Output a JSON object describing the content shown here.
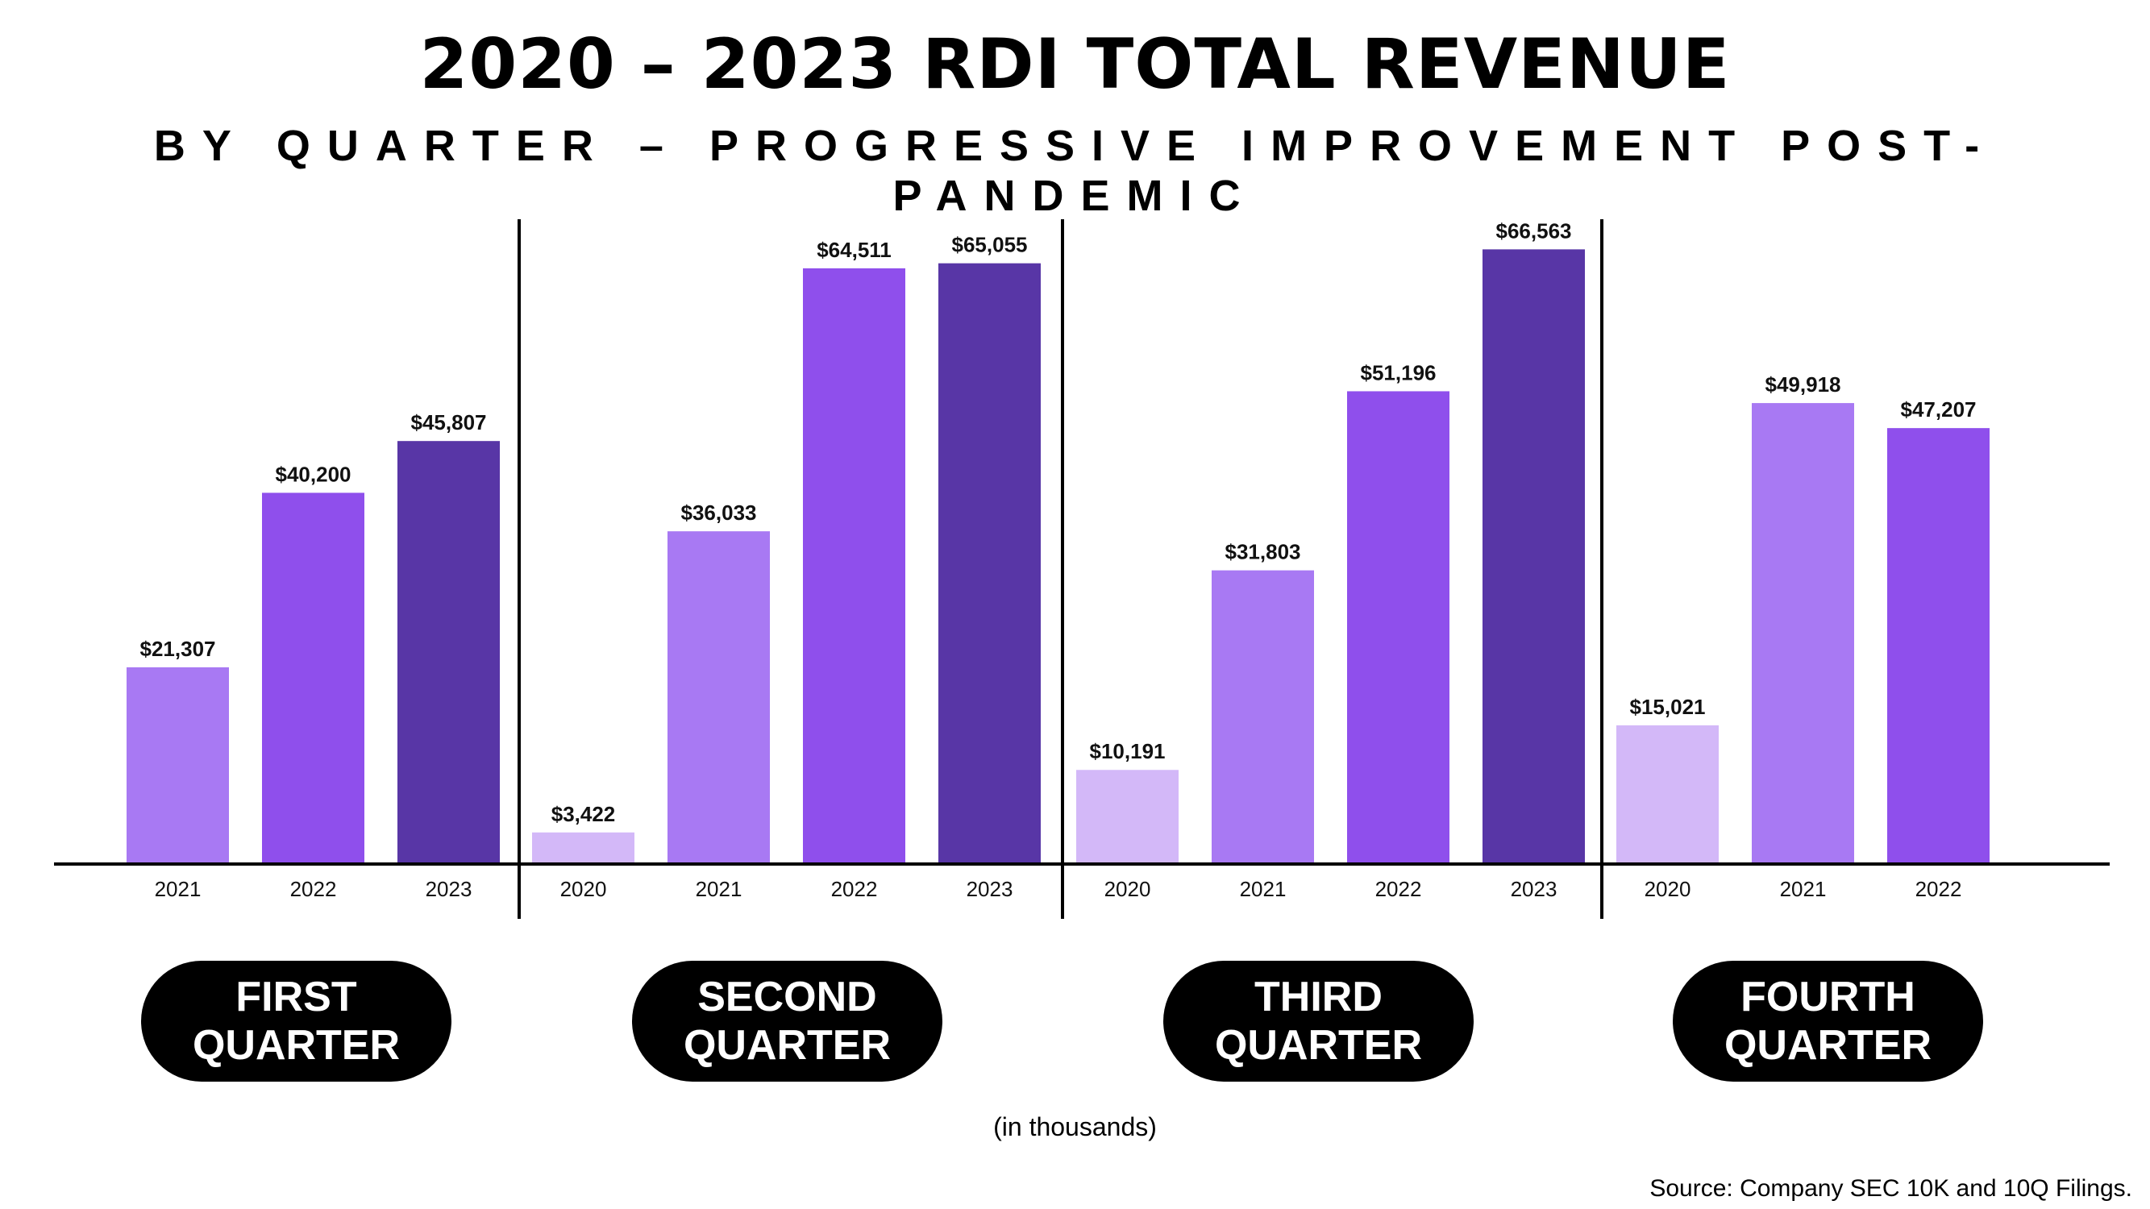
{
  "header": {
    "title": "2020 – 2023 RDI TOTAL REVENUE",
    "subtitle": "BY QUARTER – PROGRESSIVE IMPROVEMENT POST-PANDEMIC"
  },
  "chart_data": {
    "type": "bar",
    "title": "2020 – 2023 RDI TOTAL REVENUE",
    "subtitle": "BY QUARTER – PROGRESSIVE IMPROVEMENT POST-PANDEMIC",
    "unit_note": "(in thousands)",
    "ylim": [
      0,
      70000
    ],
    "grid": false,
    "groups": [
      {
        "name": "FIRST QUARTER",
        "name_lines": [
          "FIRST",
          "QUARTER"
        ],
        "bars": [
          {
            "year": "2021",
            "value": 21307,
            "label": "$21,307"
          },
          {
            "year": "2022",
            "value": 40200,
            "label": "$40,200"
          },
          {
            "year": "2023",
            "value": 45807,
            "label": "$45,807"
          }
        ]
      },
      {
        "name": "SECOND QUARTER",
        "name_lines": [
          "SECOND",
          "QUARTER"
        ],
        "bars": [
          {
            "year": "2020",
            "value": 3422,
            "label": "$3,422"
          },
          {
            "year": "2021",
            "value": 36033,
            "label": "$36,033"
          },
          {
            "year": "2022",
            "value": 64511,
            "label": "$64,511"
          },
          {
            "year": "2023",
            "value": 65055,
            "label": "$65,055"
          }
        ]
      },
      {
        "name": "THIRD QUARTER",
        "name_lines": [
          "THIRD",
          "QUARTER"
        ],
        "bars": [
          {
            "year": "2020",
            "value": 10191,
            "label": "$10,191"
          },
          {
            "year": "2021",
            "value": 31803,
            "label": "$31,803"
          },
          {
            "year": "2022",
            "value": 51196,
            "label": "$51,196"
          },
          {
            "year": "2023",
            "value": 66563,
            "label": "$66,563"
          }
        ]
      },
      {
        "name": "FOURTH QUARTER",
        "name_lines": [
          "FOURTH",
          "QUARTER"
        ],
        "bars": [
          {
            "year": "2020",
            "value": 15021,
            "label": "$15,021"
          },
          {
            "year": "2021",
            "value": 49918,
            "label": "$49,918"
          },
          {
            "year": "2022",
            "value": 47207,
            "label": "$47,207"
          }
        ]
      }
    ],
    "year_colors": {
      "2020": "#d3b8f8",
      "2021": "#a879f3",
      "2022": "#8f4fec",
      "2023": "#5836a6"
    }
  },
  "quarters": {
    "q1": [
      "FIRST",
      "QUARTER"
    ],
    "q2": [
      "SECOND",
      "QUARTER"
    ],
    "q3": [
      "THIRD",
      "QUARTER"
    ],
    "q4": [
      "FOURTH",
      "QUARTER"
    ]
  },
  "footer": {
    "note": "(in thousands)",
    "source": "Source: Company SEC 10K and 10Q Filings."
  }
}
